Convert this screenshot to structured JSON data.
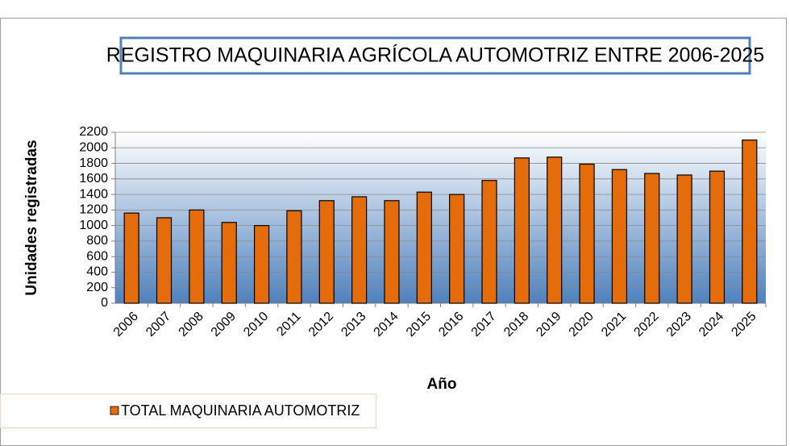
{
  "chart_data": {
    "type": "bar",
    "title": "REGISTRO MAQUINARIA AGRÍCOLA AUTOMOTRIZ ENTRE 2006-2025",
    "x_label": "Año",
    "y_label": "Unidades registradas",
    "categories": [
      "2006",
      "2007",
      "2008",
      "2009",
      "2010",
      "2011",
      "2012",
      "2013",
      "2014",
      "2015",
      "2016",
      "2017",
      "2018",
      "2019",
      "2020",
      "2021",
      "2022",
      "2023",
      "2024",
      "2025"
    ],
    "series": [
      {
        "name": "TOTAL MAQUINARIA AUTOMOTRIZ",
        "color": "#e46c0a",
        "values": [
          1160,
          1100,
          1200,
          1040,
          1000,
          1190,
          1320,
          1370,
          1320,
          1430,
          1400,
          1580,
          1870,
          1880,
          1790,
          1720,
          1670,
          1650,
          1700,
          2100
        ]
      }
    ],
    "ylim": [
      0,
      2200
    ],
    "yticks": [
      0,
      200,
      400,
      600,
      800,
      1000,
      1200,
      1400,
      1600,
      1800,
      2000,
      2200
    ],
    "grid": true,
    "legend": "bottom-left"
  }
}
